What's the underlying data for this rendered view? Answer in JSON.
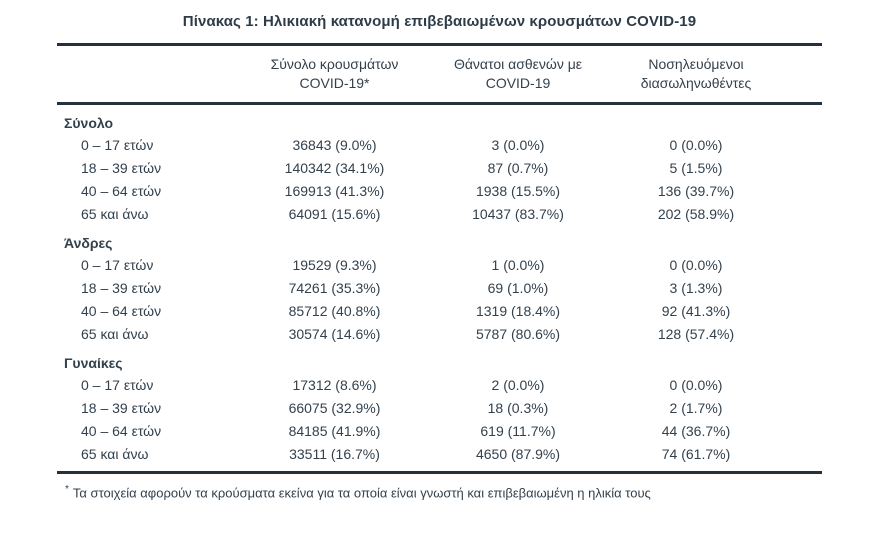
{
  "title": "Πίνακας 1: Ηλικιακή κατανομή επιβεβαιωμένων κρουσμάτων COVID-19",
  "table": {
    "columns": [
      {
        "line1": "Σύνολο κρουσμάτων",
        "line2": "COVID-19*"
      },
      {
        "line1": "Θάνατοι ασθενών με",
        "line2": "COVID-19"
      },
      {
        "line1": "Νοσηλευόμενοι",
        "line2": "διασωληνωθέντες"
      }
    ],
    "sections": [
      {
        "label": "Σύνολο",
        "rows": [
          {
            "label": "0 – 17 ετών",
            "cases": "36843 (9.0%)",
            "deaths": "3 (0.0%)",
            "intubated": "0 (0.0%)"
          },
          {
            "label": "18 – 39 ετών",
            "cases": "140342 (34.1%)",
            "deaths": "87 (0.7%)",
            "intubated": "5 (1.5%)"
          },
          {
            "label": "40 – 64 ετών",
            "cases": "169913 (41.3%)",
            "deaths": "1938 (15.5%)",
            "intubated": "136 (39.7%)"
          },
          {
            "label": "65 και άνω",
            "cases": "64091 (15.6%)",
            "deaths": "10437 (83.7%)",
            "intubated": "202 (58.9%)"
          }
        ]
      },
      {
        "label": "Άνδρες",
        "rows": [
          {
            "label": "0 – 17 ετών",
            "cases": "19529 (9.3%)",
            "deaths": "1 (0.0%)",
            "intubated": "0 (0.0%)"
          },
          {
            "label": "18 – 39 ετών",
            "cases": "74261 (35.3%)",
            "deaths": "69 (1.0%)",
            "intubated": "3 (1.3%)"
          },
          {
            "label": "40 – 64 ετών",
            "cases": "85712 (40.8%)",
            "deaths": "1319 (18.4%)",
            "intubated": "92 (41.3%)"
          },
          {
            "label": "65 και άνω",
            "cases": "30574 (14.6%)",
            "deaths": "5787 (80.6%)",
            "intubated": "128 (57.4%)"
          }
        ]
      },
      {
        "label": "Γυναίκες",
        "rows": [
          {
            "label": "0 – 17 ετών",
            "cases": "17312 (8.6%)",
            "deaths": "2 (0.0%)",
            "intubated": "0 (0.0%)"
          },
          {
            "label": "18 – 39 ετών",
            "cases": "66075 (32.9%)",
            "deaths": "18 (0.3%)",
            "intubated": "2 (1.7%)"
          },
          {
            "label": "40 – 64 ετών",
            "cases": "84185 (41.9%)",
            "deaths": "619 (11.7%)",
            "intubated": "44 (36.7%)"
          },
          {
            "label": "65 και άνω",
            "cases": "33511 (16.7%)",
            "deaths": "4650 (87.9%)",
            "intubated": "74 (61.7%)"
          }
        ]
      }
    ],
    "footnote": {
      "marker": "*",
      "text": "Τα στοιχεία αφορούν τα κρούσματα εκείνα για τα οποία είναι γνωστή και επιβεβαιωμένη η ηλικία τους"
    }
  },
  "colors": {
    "text": "#33414d",
    "rule": "#243240",
    "background": "#ffffff"
  }
}
